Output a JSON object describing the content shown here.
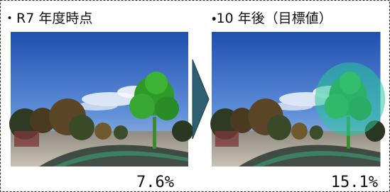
{
  "panels": [
    {
      "title": "・R7 年度時点",
      "value": "7.6%"
    },
    {
      "title": "・10 年後（目標値）",
      "value": "15.1%"
    }
  ]
}
